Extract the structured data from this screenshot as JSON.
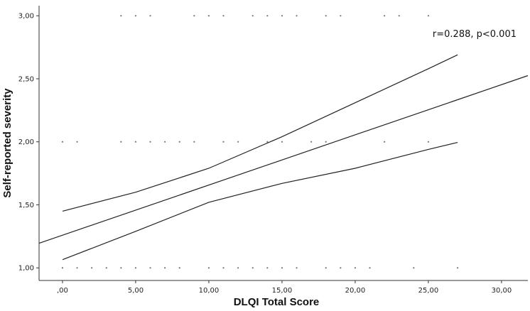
{
  "chart_data": {
    "type": "scatter",
    "title": "",
    "xlabel": "DLQI Total Score",
    "ylabel": "Self-reported severity",
    "annotation": "r=0.288, p<0.001",
    "xlim": [
      -1.6,
      31.8
    ],
    "ylim": [
      0.9,
      3.08
    ],
    "x_ticks": [
      0,
      5,
      10,
      15,
      20,
      25,
      30
    ],
    "x_tick_labels": [
      ",00",
      "5,00",
      "10,00",
      "15,00",
      "20,00",
      "25,00",
      "30,00"
    ],
    "y_ticks": [
      1,
      1.5,
      2,
      2.5,
      3
    ],
    "y_tick_labels": [
      "1,00",
      "1,50",
      "2,00",
      "2,50",
      "3,00"
    ],
    "grid": false,
    "points": [
      [
        0,
        1
      ],
      [
        1,
        1
      ],
      [
        2,
        1
      ],
      [
        3,
        1
      ],
      [
        4,
        1
      ],
      [
        5,
        1
      ],
      [
        6,
        1
      ],
      [
        7,
        1
      ],
      [
        8,
        1
      ],
      [
        10,
        1
      ],
      [
        11,
        1
      ],
      [
        12,
        1
      ],
      [
        13,
        1
      ],
      [
        14,
        1
      ],
      [
        15,
        1
      ],
      [
        16,
        1
      ],
      [
        18,
        1
      ],
      [
        19,
        1
      ],
      [
        20,
        1
      ],
      [
        21,
        1
      ],
      [
        24,
        1
      ],
      [
        27,
        1
      ],
      [
        0,
        2
      ],
      [
        1,
        2
      ],
      [
        4,
        2
      ],
      [
        5,
        2
      ],
      [
        6,
        2
      ],
      [
        7,
        2
      ],
      [
        8,
        2
      ],
      [
        9,
        2
      ],
      [
        11,
        2
      ],
      [
        12,
        2
      ],
      [
        14,
        2
      ],
      [
        15,
        2
      ],
      [
        17,
        2
      ],
      [
        18,
        2
      ],
      [
        22,
        2
      ],
      [
        25,
        2
      ],
      [
        4,
        3
      ],
      [
        5,
        3
      ],
      [
        6,
        3
      ],
      [
        9,
        3
      ],
      [
        10,
        3
      ],
      [
        11,
        3
      ],
      [
        13,
        3
      ],
      [
        14,
        3
      ],
      [
        15,
        3
      ],
      [
        16,
        3
      ],
      [
        18,
        3
      ],
      [
        19,
        3
      ],
      [
        22,
        3
      ],
      [
        23,
        3
      ],
      [
        25,
        3
      ]
    ],
    "fit_line": {
      "x": [
        -1.6,
        31.8
      ],
      "y": [
        1.195,
        2.525
      ]
    },
    "ci_upper": {
      "x": [
        0,
        5,
        10,
        15,
        20,
        25,
        27
      ],
      "y": [
        1.45,
        1.6,
        1.79,
        2.04,
        2.31,
        2.58,
        2.69
      ]
    },
    "ci_lower": {
      "x": [
        0,
        5,
        10,
        15,
        20,
        25,
        27
      ],
      "y": [
        1.065,
        1.29,
        1.52,
        1.67,
        1.79,
        1.94,
        1.995
      ]
    }
  }
}
